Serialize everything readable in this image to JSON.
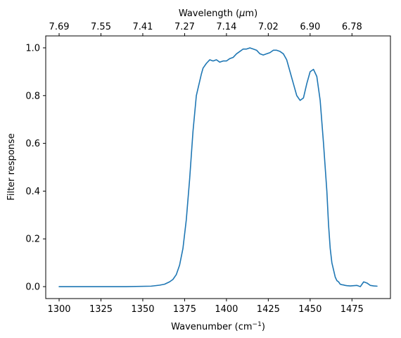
{
  "chart_data": {
    "type": "line",
    "xlabel": "Wavenumber (cm",
    "xlabel_sup": "−1",
    "xlabel_end": ")",
    "ylabel": "Filter response",
    "top_xlabel_pre": "Wavelength (",
    "top_xlabel_mu": "μ",
    "top_xlabel_post": "m)",
    "xlim": [
      1292,
      1498
    ],
    "ylim": [
      -0.05,
      1.05
    ],
    "xticks": [
      1300,
      1325,
      1350,
      1375,
      1400,
      1425,
      1450,
      1475
    ],
    "yticks": [
      0.0,
      0.2,
      0.4,
      0.6,
      0.8,
      1.0
    ],
    "ytick_labels": [
      "0.0",
      "0.2",
      "0.4",
      "0.6",
      "0.8",
      "1.0"
    ],
    "top_ticks": [
      {
        "x": 1300,
        "label": "7.69"
      },
      {
        "x": 1325,
        "label": "7.55"
      },
      {
        "x": 1350,
        "label": "7.41"
      },
      {
        "x": 1375,
        "label": "7.27"
      },
      {
        "x": 1400,
        "label": "7.14"
      },
      {
        "x": 1425,
        "label": "7.02"
      },
      {
        "x": 1450,
        "label": "6.90"
      },
      {
        "x": 1475,
        "label": "6.78"
      }
    ],
    "line_color": "#1f77b4",
    "grid": false,
    "series": [
      {
        "x": [
          1300,
          1320,
          1340,
          1355,
          1360,
          1363,
          1366,
          1368,
          1370,
          1372,
          1374,
          1376,
          1378,
          1380,
          1382,
          1384,
          1385,
          1386,
          1388,
          1390,
          1392,
          1394,
          1396,
          1398,
          1400,
          1402,
          1404,
          1406,
          1408,
          1410,
          1412,
          1414,
          1416,
          1418,
          1420,
          1422,
          1424,
          1426,
          1428,
          1430,
          1432,
          1434,
          1436,
          1438,
          1440,
          1442,
          1444,
          1446,
          1448,
          1450,
          1452,
          1454,
          1456,
          1458,
          1460,
          1461,
          1462,
          1463,
          1464,
          1465,
          1466,
          1467,
          1468,
          1469,
          1470,
          1471,
          1472,
          1474,
          1476,
          1478,
          1480,
          1482,
          1484,
          1486,
          1488,
          1490
        ],
        "y": [
          0.0,
          0.0,
          0.0,
          0.002,
          0.006,
          0.01,
          0.02,
          0.03,
          0.05,
          0.09,
          0.16,
          0.28,
          0.45,
          0.65,
          0.8,
          0.86,
          0.89,
          0.915,
          0.935,
          0.95,
          0.945,
          0.95,
          0.94,
          0.945,
          0.945,
          0.955,
          0.96,
          0.975,
          0.985,
          0.995,
          0.995,
          1.0,
          0.995,
          0.99,
          0.975,
          0.97,
          0.975,
          0.98,
          0.99,
          0.99,
          0.985,
          0.975,
          0.95,
          0.9,
          0.85,
          0.8,
          0.78,
          0.79,
          0.85,
          0.9,
          0.91,
          0.88,
          0.78,
          0.6,
          0.4,
          0.26,
          0.16,
          0.1,
          0.07,
          0.04,
          0.025,
          0.02,
          0.01,
          0.008,
          0.007,
          0.005,
          0.004,
          0.003,
          0.004,
          0.005,
          0.0,
          0.02,
          0.015,
          0.005,
          0.003,
          0.002
        ]
      }
    ]
  }
}
